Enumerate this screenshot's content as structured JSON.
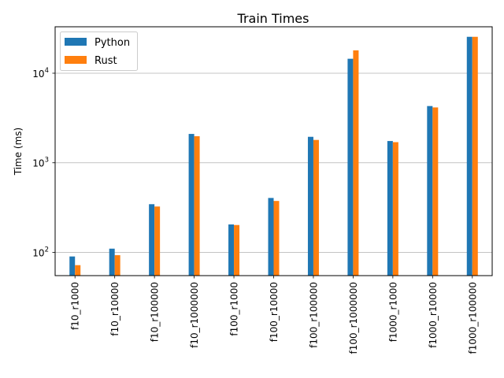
{
  "chart_data": {
    "type": "bar",
    "title": "Train Times",
    "xlabel": "",
    "ylabel": "Time (ms)",
    "yscale": "log",
    "ylim": [
      55,
      33000
    ],
    "y_ticks": [
      100,
      1000,
      10000
    ],
    "y_tick_labels": [
      {
        "base": "10",
        "exp": "2"
      },
      {
        "base": "10",
        "exp": "3"
      },
      {
        "base": "10",
        "exp": "4"
      }
    ],
    "grid": "y-major",
    "legend_position": "top-left",
    "categories": [
      "f10_r1000",
      "f10_r10000",
      "f10_r100000",
      "f10_r1000000",
      "f100_r1000",
      "f100_r10000",
      "f100_r100000",
      "f100_r1000000",
      "f1000_r1000",
      "f1000_r10000",
      "f1000_r100000"
    ],
    "series": [
      {
        "name": "Python",
        "color": "#1f77b4",
        "values": [
          90,
          110,
          345,
          2100,
          205,
          405,
          1950,
          14500,
          1750,
          4300,
          25500
        ]
      },
      {
        "name": "Rust",
        "color": "#ff7f0e",
        "values": [
          72,
          93,
          325,
          1980,
          202,
          375,
          1800,
          18000,
          1700,
          4150,
          25500
        ]
      }
    ]
  }
}
